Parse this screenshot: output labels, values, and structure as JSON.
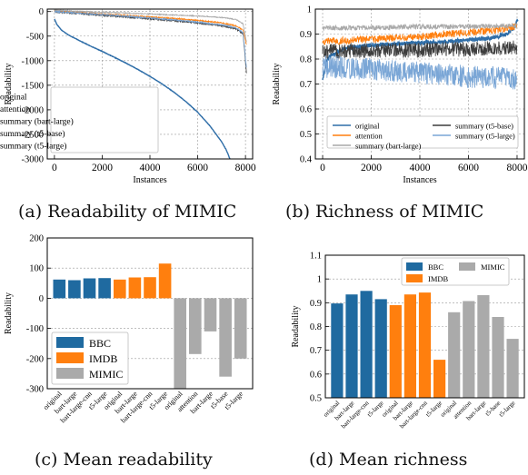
{
  "captions": {
    "a": "(a) Readability of MIMIC",
    "b": "(b) Richness of MIMIC",
    "c": "(c) Mean readability",
    "d": "(d) Mean richness"
  },
  "chart_data": [
    {
      "id": "a",
      "type": "line",
      "xlabel": "Instances",
      "ylabel": "Readability",
      "xlim": [
        -300,
        8300
      ],
      "ylim": [
        -3000,
        50
      ],
      "xticks": [
        0,
        2000,
        4000,
        6000,
        8000
      ],
      "yticks": [
        0,
        -500,
        -1000,
        -1500,
        -2000,
        -2500,
        -3000
      ],
      "grid": true,
      "legend_position": "lower-left",
      "series": [
        {
          "name": "original",
          "color": "#2f6ea8",
          "points": [
            [
              0,
              -150
            ],
            [
              100,
              -260
            ],
            [
              300,
              -380
            ],
            [
              600,
              -480
            ],
            [
              1000,
              -580
            ],
            [
              1500,
              -700
            ],
            [
              2000,
              -810
            ],
            [
              2500,
              -930
            ],
            [
              3000,
              -1050
            ],
            [
              3500,
              -1180
            ],
            [
              4000,
              -1320
            ],
            [
              4500,
              -1470
            ],
            [
              5000,
              -1640
            ],
            [
              5500,
              -1830
            ],
            [
              6000,
              -2050
            ],
            [
              6500,
              -2320
            ],
            [
              7000,
              -2650
            ],
            [
              7200,
              -2820
            ],
            [
              7350,
              -3000
            ]
          ]
        },
        {
          "name": "attention",
          "color": "#ff7f0e",
          "points": [
            [
              0,
              10
            ],
            [
              1000,
              -20
            ],
            [
              2000,
              -50
            ],
            [
              3000,
              -80
            ],
            [
              4000,
              -110
            ],
            [
              5000,
              -140
            ],
            [
              6000,
              -180
            ],
            [
              7000,
              -230
            ],
            [
              7600,
              -290
            ],
            [
              7900,
              -380
            ],
            [
              8050,
              -700
            ]
          ]
        },
        {
          "name": "summary (bart-large)",
          "color": "#a8a8a8",
          "points": [
            [
              0,
              30
            ],
            [
              1000,
              5
            ],
            [
              2000,
              -15
            ],
            [
              3000,
              -30
            ],
            [
              4000,
              -50
            ],
            [
              5000,
              -70
            ],
            [
              6000,
              -90
            ],
            [
              7000,
              -120
            ],
            [
              7600,
              -160
            ],
            [
              7900,
              -250
            ],
            [
              8050,
              -650
            ]
          ]
        },
        {
          "name": "summary (t5-base)",
          "color": "#3d3d3d",
          "points": [
            [
              0,
              -5
            ],
            [
              1000,
              -40
            ],
            [
              2000,
              -75
            ],
            [
              3000,
              -110
            ],
            [
              4000,
              -145
            ],
            [
              5000,
              -185
            ],
            [
              6000,
              -230
            ],
            [
              7000,
              -290
            ],
            [
              7600,
              -350
            ],
            [
              7900,
              -450
            ],
            [
              8050,
              -1300
            ]
          ]
        },
        {
          "name": "summary (t5-large)",
          "color": "#7aa6d6",
          "points": [
            [
              0,
              0
            ],
            [
              1000,
              -30
            ],
            [
              2000,
              -60
            ],
            [
              3000,
              -95
            ],
            [
              4000,
              -130
            ],
            [
              5000,
              -170
            ],
            [
              6000,
              -215
            ],
            [
              7000,
              -270
            ],
            [
              7600,
              -330
            ],
            [
              7900,
              -430
            ],
            [
              8050,
              -1200
            ]
          ]
        }
      ]
    },
    {
      "id": "b",
      "type": "line",
      "xlabel": "Instances",
      "ylabel": "Readability",
      "xlim": [
        -300,
        8300
      ],
      "ylim": [
        0.4,
        1.0
      ],
      "xticks": [
        0,
        2000,
        4000,
        6000,
        8000
      ],
      "yticks": [
        0.4,
        0.5,
        0.6,
        0.7,
        0.8,
        0.9,
        1.0
      ],
      "grid": true,
      "legend_position": "lower",
      "series": [
        {
          "name": "original",
          "color": "#2f6ea8",
          "points": [
            [
              0,
              0.72
            ],
            [
              200,
              0.8
            ],
            [
              600,
              0.83
            ],
            [
              1000,
              0.845
            ],
            [
              2000,
              0.855
            ],
            [
              3000,
              0.86
            ],
            [
              4000,
              0.865
            ],
            [
              5000,
              0.87
            ],
            [
              6000,
              0.875
            ],
            [
              7000,
              0.885
            ],
            [
              7600,
              0.9
            ],
            [
              7900,
              0.93
            ],
            [
              8050,
              0.96
            ]
          ]
        },
        {
          "name": "attention",
          "color": "#ff7f0e",
          "points": [
            [
              0,
              0.87
            ],
            [
              1000,
              0.875
            ],
            [
              2000,
              0.88
            ],
            [
              3000,
              0.885
            ],
            [
              4000,
              0.89
            ],
            [
              5000,
              0.9
            ],
            [
              6000,
              0.905
            ],
            [
              7000,
              0.915
            ],
            [
              8000,
              0.93
            ]
          ]
        },
        {
          "name": "summary (bart-large)",
          "color": "#a8a8a8",
          "points": [
            [
              0,
              0.925
            ],
            [
              2000,
              0.925
            ],
            [
              4000,
              0.93
            ],
            [
              6000,
              0.93
            ],
            [
              8000,
              0.935
            ]
          ]
        },
        {
          "name": "summary (t5-base)",
          "color": "#3d3d3d",
          "points": [
            [
              0,
              0.83
            ],
            [
              2000,
              0.835
            ],
            [
              4000,
              0.835
            ],
            [
              6000,
              0.84
            ],
            [
              8000,
              0.845
            ]
          ]
        },
        {
          "name": "summary (t5-large)",
          "color": "#7aa6d6",
          "points": [
            [
              0,
              0.77
            ],
            [
              2000,
              0.76
            ],
            [
              4000,
              0.745
            ],
            [
              6000,
              0.73
            ],
            [
              8000,
              0.72
            ]
          ]
        }
      ]
    },
    {
      "id": "c",
      "type": "bar",
      "ylabel": "Readability",
      "ylim": [
        -300,
        200
      ],
      "yticks": [
        200,
        100,
        0,
        -100,
        -200,
        -300
      ],
      "grid": true,
      "legend_position": "lower-left",
      "categories": [
        "original",
        "bart-large",
        "bart-large-cnn",
        "t5-large",
        "original",
        "bart-large",
        "bart-large-cnn",
        "t5-large",
        "original",
        "attention",
        "bart-large",
        "t5-base",
        "t5-large"
      ],
      "groups": [
        "BBC",
        "BBC",
        "BBC",
        "BBC",
        "IMDB",
        "IMDB",
        "IMDB",
        "IMDB",
        "MIMIC",
        "MIMIC",
        "MIMIC",
        "MIMIC",
        "MIMIC"
      ],
      "legend": [
        {
          "name": "BBC",
          "color": "#1f6aa0"
        },
        {
          "name": "IMDB",
          "color": "#ff7f0e"
        },
        {
          "name": "MIMIC",
          "color": "#aaaaaa"
        }
      ],
      "values": [
        62,
        60,
        66,
        67,
        62,
        69,
        70,
        115,
        -300,
        -185,
        -110,
        -260,
        -200
      ]
    },
    {
      "id": "d",
      "type": "bar",
      "ylabel": "Readability",
      "ylim": [
        0.5,
        1.1
      ],
      "yticks": [
        0.5,
        0.6,
        0.7,
        0.8,
        0.9,
        1.0,
        1.1
      ],
      "grid": true,
      "legend_position": "top-right",
      "categories": [
        "original",
        "bart-large",
        "bart-large-cnn",
        "t5-large",
        "original",
        "bart-large",
        "bart-large-cnn",
        "t5-large",
        "original",
        "attention",
        "bart-large",
        "t5-base",
        "t5-large"
      ],
      "groups": [
        "BBC",
        "BBC",
        "BBC",
        "BBC",
        "IMDB",
        "IMDB",
        "IMDB",
        "IMDB",
        "MIMIC",
        "MIMIC",
        "MIMIC",
        "MIMIC",
        "MIMIC"
      ],
      "legend": [
        {
          "name": "BBC",
          "color": "#1f6aa0"
        },
        {
          "name": "IMDB",
          "color": "#ff7f0e"
        },
        {
          "name": "MIMIC",
          "color": "#aaaaaa"
        }
      ],
      "values": [
        0.897,
        0.935,
        0.95,
        0.915,
        0.89,
        0.935,
        0.943,
        0.66,
        0.86,
        0.907,
        0.932,
        0.84,
        0.748
      ]
    }
  ]
}
